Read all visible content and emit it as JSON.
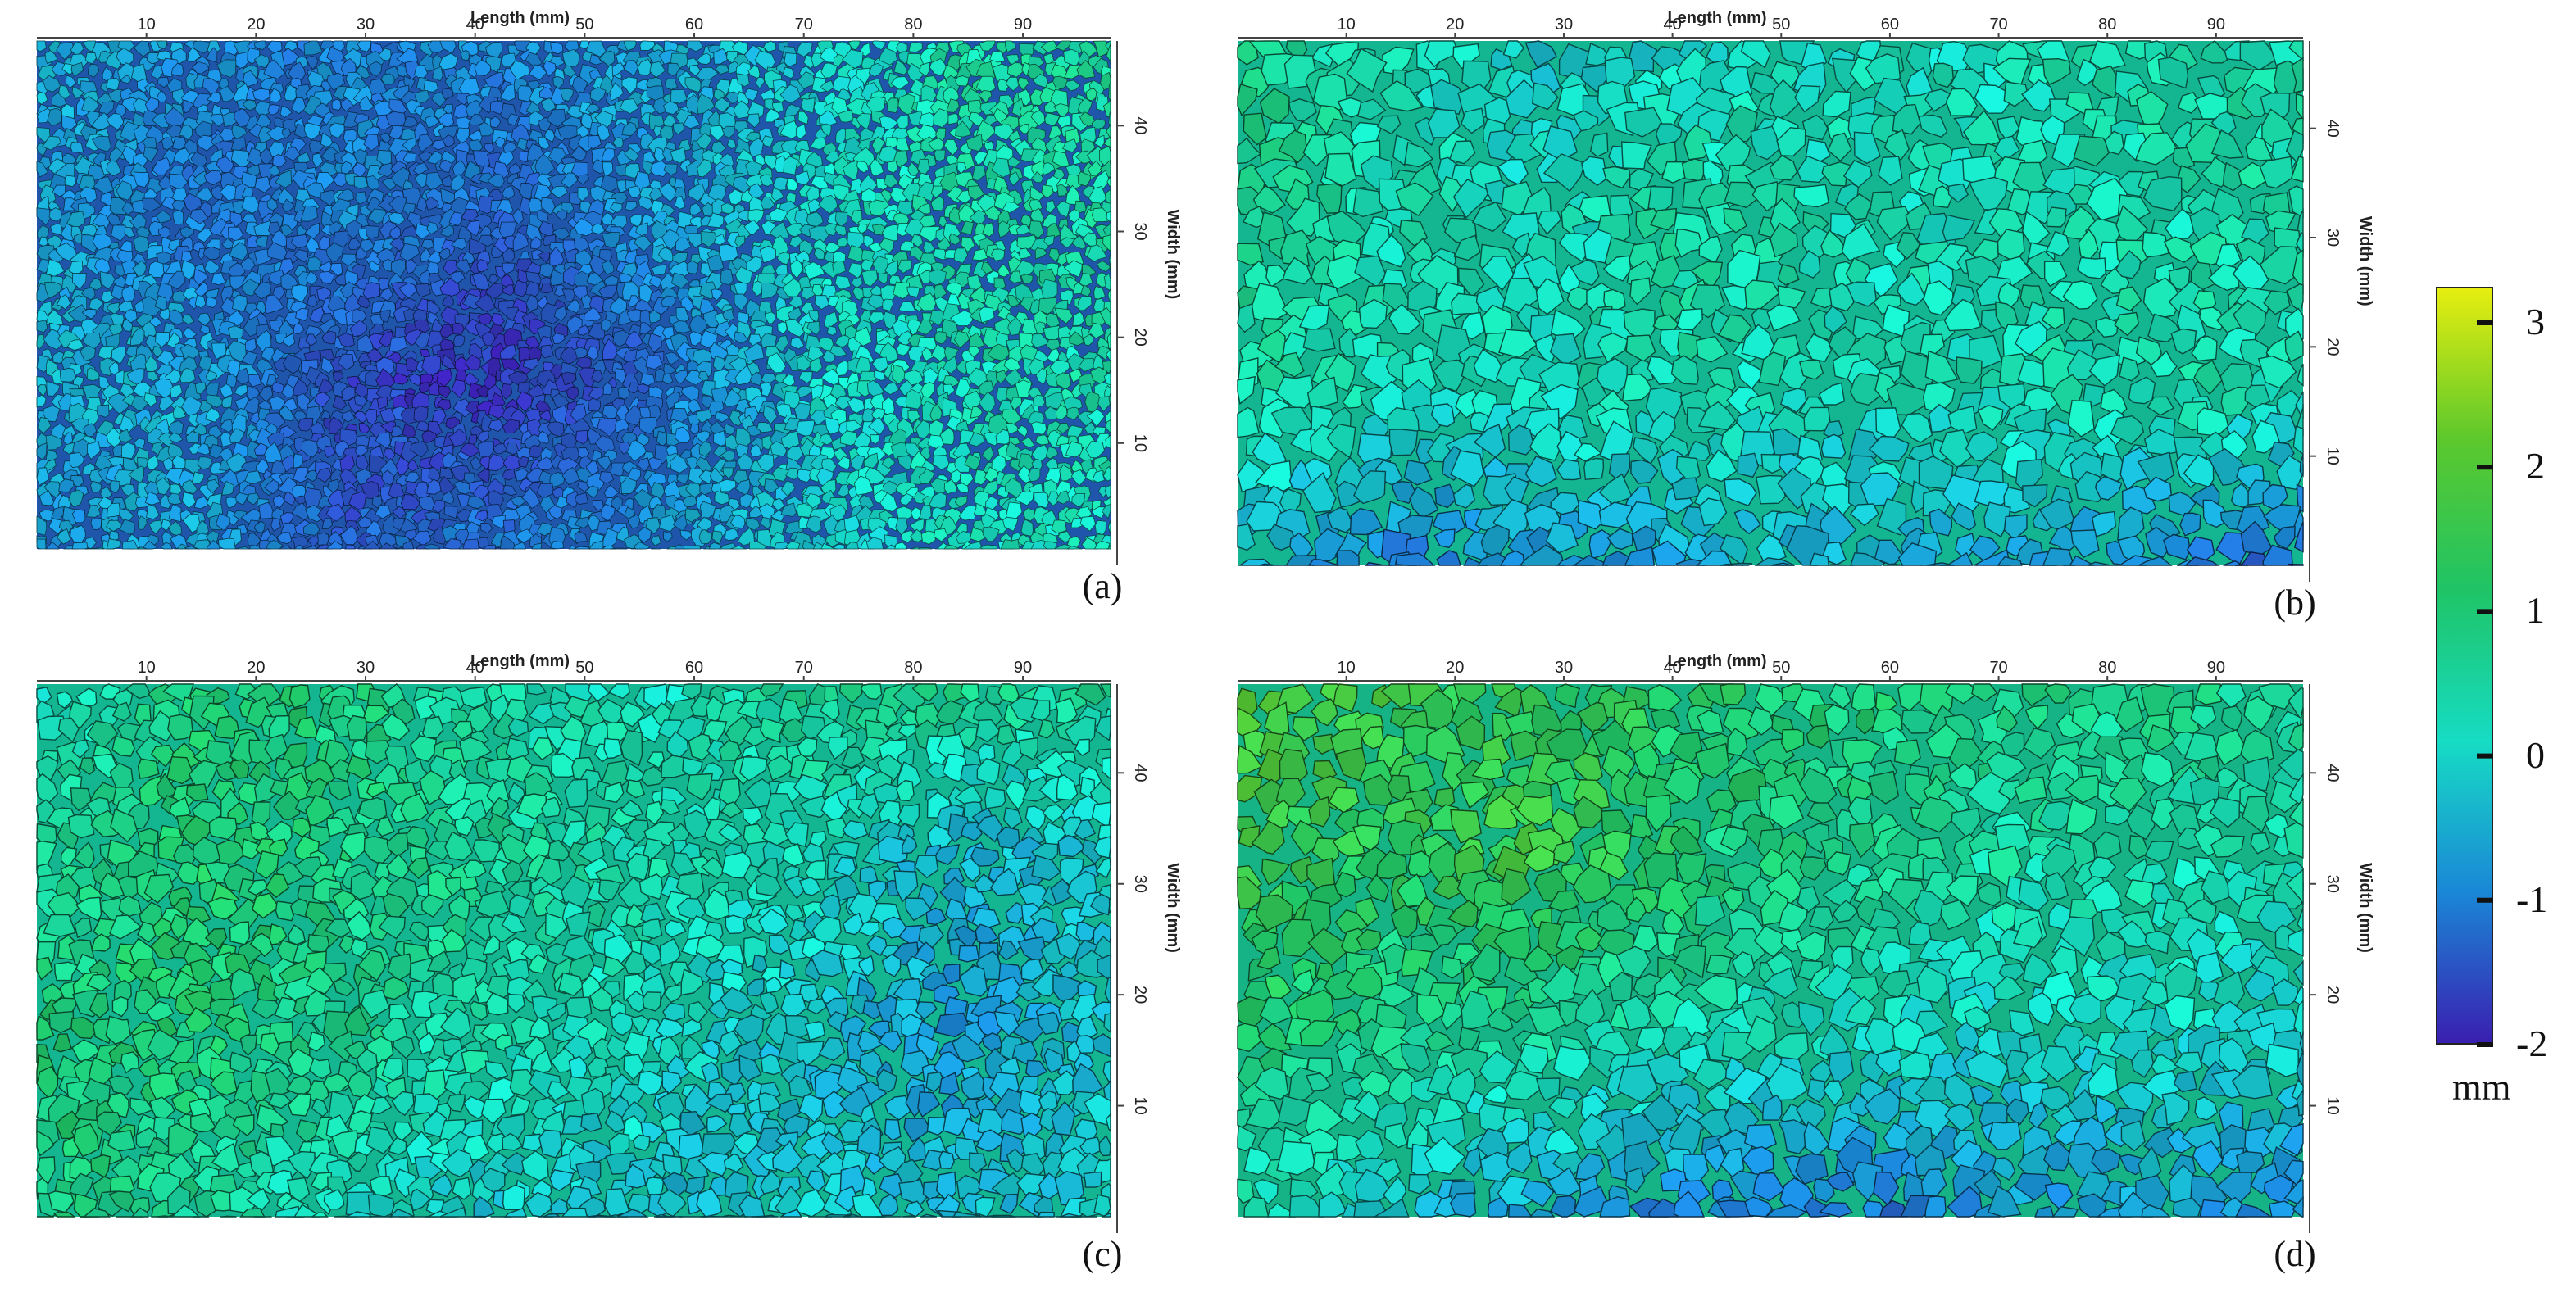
{
  "figure": {
    "x_axis_title": "Length (mm)",
    "y_axis_title": "Width (mm)",
    "x_ticks": [
      "10",
      "20",
      "30",
      "40",
      "50",
      "60",
      "70",
      "80",
      "90"
    ],
    "x_tick_values": [
      10,
      20,
      30,
      40,
      50,
      60,
      70,
      80,
      90
    ],
    "x_range": [
      0,
      98
    ],
    "y_ticks": [
      "10",
      "20",
      "30",
      "40"
    ],
    "y_tick_values": [
      10,
      20,
      30,
      40
    ],
    "y_range": [
      0,
      48
    ],
    "panels": [
      {
        "label": "(a)",
        "texture": "fine",
        "seed": 11,
        "height_map": [
          [
            -0.4,
            -0.8,
            -1.0,
            -0.9,
            -0.6,
            -0.2,
            0.5,
            0.6
          ],
          [
            -0.6,
            -1.2,
            -0.9,
            -1.3,
            -0.7,
            0.0,
            0.4,
            0.5
          ],
          [
            -0.4,
            -0.5,
            -1.6,
            -1.9,
            -1.3,
            -0.1,
            0.3,
            0.4
          ],
          [
            -0.8,
            -0.6,
            -1.4,
            -1.1,
            -0.7,
            -0.2,
            0.2,
            0.2
          ]
        ]
      },
      {
        "label": "(b)",
        "texture": "coarse",
        "seed": 23,
        "height_map": [
          [
            0.9,
            0.2,
            -0.2,
            0.0,
            0.1,
            0.3,
            0.4,
            0.5
          ],
          [
            0.7,
            0.4,
            0.1,
            0.6,
            0.3,
            0.2,
            0.4,
            0.4
          ],
          [
            0.5,
            0.3,
            0.2,
            0.4,
            0.2,
            0.3,
            0.5,
            0.3
          ],
          [
            -0.4,
            -1.2,
            -0.8,
            -0.6,
            -0.5,
            -0.6,
            -1.0,
            -1.4
          ]
        ]
      },
      {
        "label": "(c)",
        "texture": "medium",
        "seed": 37,
        "height_map": [
          [
            0.1,
            0.9,
            1.0,
            0.4,
            0.2,
            0.7,
            0.8,
            0.6
          ],
          [
            0.6,
            1.1,
            0.9,
            0.6,
            0.4,
            0.2,
            -0.6,
            -0.2
          ],
          [
            1.0,
            1.0,
            0.7,
            0.4,
            0.1,
            -0.4,
            -0.8,
            -0.3
          ],
          [
            0.9,
            0.6,
            0.1,
            -0.3,
            -0.4,
            -0.2,
            -0.4,
            -0.2
          ]
        ]
      },
      {
        "label": "(d)",
        "texture": "coarse",
        "seed": 51,
        "height_map": [
          [
            2.0,
            1.7,
            1.4,
            1.2,
            1.0,
            0.9,
            0.8,
            0.6
          ],
          [
            1.6,
            1.3,
            1.7,
            1.0,
            0.7,
            0.5,
            0.4,
            0.4
          ],
          [
            1.0,
            0.8,
            0.5,
            0.3,
            0.1,
            -0.1,
            0.0,
            -0.2
          ],
          [
            0.3,
            -0.4,
            -0.7,
            -1.0,
            -1.2,
            -0.9,
            -0.7,
            -0.9
          ]
        ]
      }
    ]
  },
  "colorbar": {
    "labels": [
      "3",
      "2",
      "1",
      "0",
      "-1",
      "-2"
    ],
    "values": [
      3,
      2,
      1,
      0,
      -1,
      -2
    ],
    "range": [
      -2,
      3.25
    ],
    "stops": [
      "#e6ee10",
      "#5cc82c",
      "#1fc466",
      "#16dcc4",
      "#1a87d6",
      "#3a1fb0"
    ],
    "unit": "mm"
  }
}
